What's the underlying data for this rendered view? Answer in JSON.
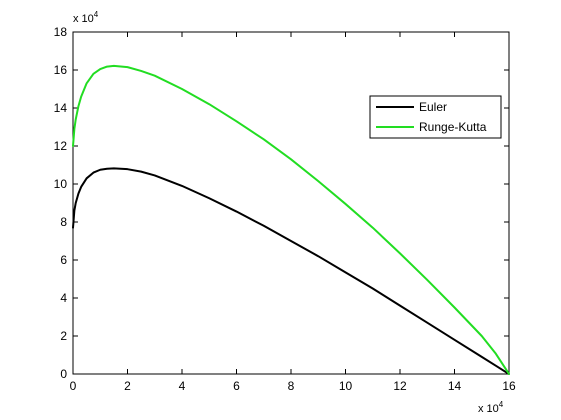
{
  "chart_data": {
    "type": "line",
    "title": "",
    "xlabel": "",
    "ylabel": "",
    "x_multiplier": {
      "base": "x 10",
      "exponent": "4"
    },
    "y_multiplier": {
      "base": "x 10",
      "exponent": "4"
    },
    "xlim": [
      0,
      16
    ],
    "ylim": [
      0,
      18
    ],
    "x_ticks": [
      "0",
      "2",
      "4",
      "6",
      "8",
      "10",
      "12",
      "14",
      "16"
    ],
    "y_ticks": [
      "0",
      "2",
      "4",
      "6",
      "8",
      "10",
      "12",
      "14",
      "16",
      "18"
    ],
    "grid": false,
    "legend_position": "upper-right",
    "series": [
      {
        "name": "Euler",
        "color": "#000000",
        "x": [
          0,
          0.05,
          0.1,
          0.2,
          0.3,
          0.5,
          0.75,
          1.0,
          1.25,
          1.5,
          2,
          2.5,
          3,
          4,
          5,
          6,
          7,
          8,
          9,
          10,
          11,
          12,
          13,
          14,
          15,
          15.5,
          16
        ],
        "y": [
          7.7,
          8.6,
          9.0,
          9.5,
          9.85,
          10.3,
          10.6,
          10.75,
          10.8,
          10.82,
          10.78,
          10.65,
          10.45,
          9.9,
          9.25,
          8.55,
          7.8,
          7.0,
          6.2,
          5.35,
          4.5,
          3.6,
          2.7,
          1.8,
          0.9,
          0.45,
          0.0
        ]
      },
      {
        "name": "Runge-Kutta",
        "color": "#22dd22",
        "x": [
          0,
          0.05,
          0.1,
          0.2,
          0.3,
          0.5,
          0.75,
          1.0,
          1.25,
          1.5,
          2,
          2.5,
          3,
          4,
          5,
          6,
          7,
          8,
          9,
          10,
          11,
          12,
          13,
          14,
          15,
          15.5,
          16
        ],
        "y": [
          12.0,
          12.9,
          13.4,
          14.1,
          14.6,
          15.3,
          15.8,
          16.05,
          16.18,
          16.22,
          16.15,
          15.95,
          15.7,
          15.0,
          14.2,
          13.3,
          12.35,
          11.3,
          10.15,
          8.95,
          7.7,
          6.35,
          4.95,
          3.5,
          2.0,
          1.1,
          0.0
        ]
      }
    ]
  }
}
